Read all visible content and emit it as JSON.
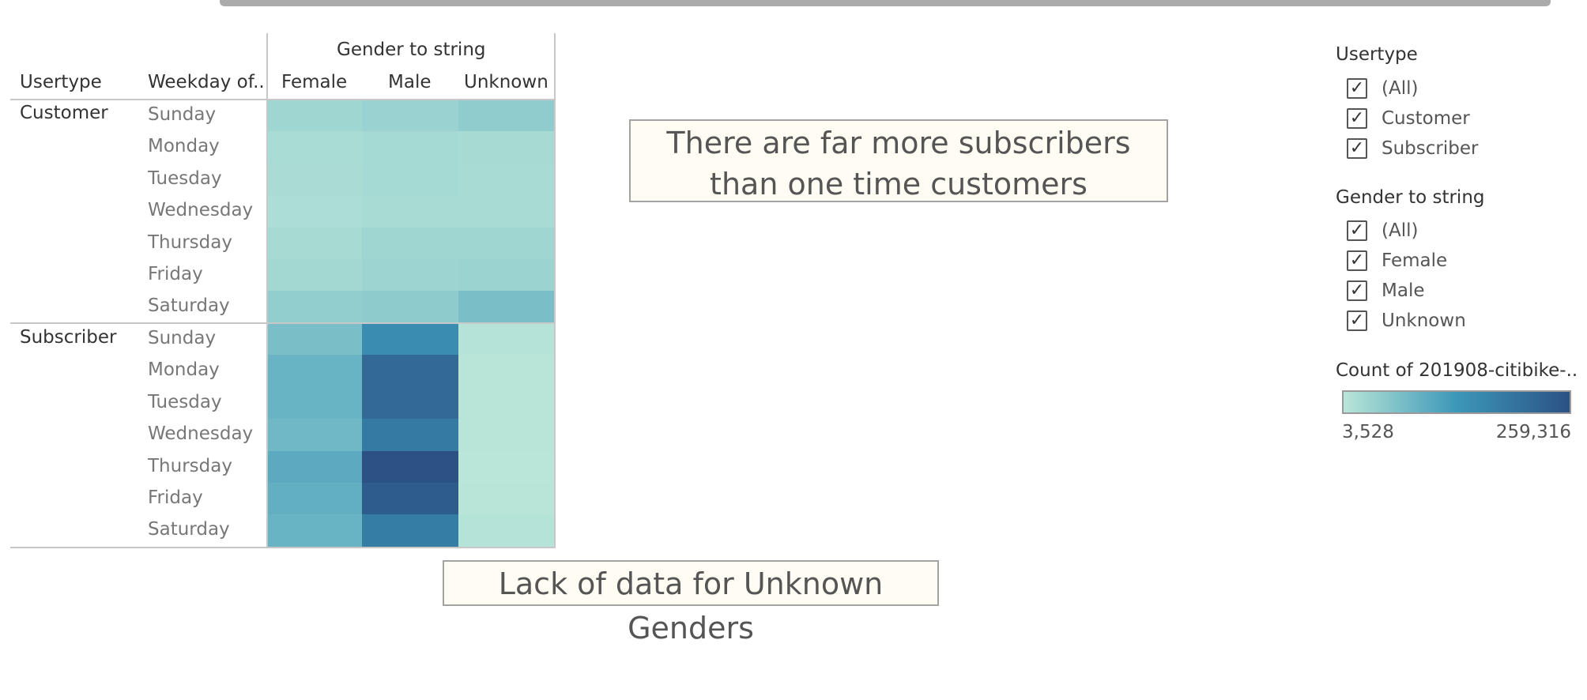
{
  "chart_data": {
    "type": "heatmap",
    "column_group_title": "Gender to string",
    "row_headers": [
      "Usertype",
      "Weekday of.."
    ],
    "columns": [
      "Female",
      "Male",
      "Unknown"
    ],
    "groups": [
      {
        "name": "Customer",
        "rows": [
          {
            "label": "Sunday",
            "values": [
              30000,
              36000,
              45000
            ]
          },
          {
            "label": "Monday",
            "values": [
              20000,
              24000,
              23000
            ]
          },
          {
            "label": "Tuesday",
            "values": [
              19000,
              24000,
              22000
            ]
          },
          {
            "label": "Wednesday",
            "values": [
              17000,
              22000,
              21000
            ]
          },
          {
            "label": "Thursday",
            "values": [
              23000,
              29000,
              30000
            ]
          },
          {
            "label": "Friday",
            "values": [
              26000,
              32000,
              35000
            ]
          },
          {
            "label": "Saturday",
            "values": [
              42000,
              48000,
              68000
            ]
          }
        ]
      },
      {
        "name": "Subscriber",
        "rows": [
          {
            "label": "Sunday",
            "values": [
              68000,
              150000,
              8000
            ]
          },
          {
            "label": "Monday",
            "values": [
              85000,
              215000,
              5000
            ]
          },
          {
            "label": "Tuesday",
            "values": [
              85000,
              215000,
              5000
            ]
          },
          {
            "label": "Wednesday",
            "values": [
              78000,
              185000,
              4500
            ]
          },
          {
            "label": "Thursday",
            "values": [
              100000,
              259316,
              3528
            ]
          },
          {
            "label": "Friday",
            "values": [
              92000,
              240000,
              4500
            ]
          },
          {
            "label": "Saturday",
            "values": [
              85000,
              180000,
              9000
            ]
          }
        ]
      }
    ],
    "color_range": [
      3528,
      259316
    ]
  },
  "annotations": [
    "There are far more subscribers than one time customers",
    "Lack of data for Unknown Genders"
  ],
  "filters": [
    {
      "title": "Usertype",
      "items": [
        "(All)",
        "Customer",
        "Subscriber"
      ]
    },
    {
      "title": "Gender to string",
      "items": [
        "(All)",
        "Female",
        "Male",
        "Unknown"
      ]
    }
  ],
  "legend": {
    "title": "Count of 201908-citibike-..",
    "min_label": "3,528",
    "max_label": "259,316",
    "colors": [
      "#b9e6d8",
      "#3c97b8",
      "#2c5283"
    ]
  },
  "check_glyph": "✓"
}
